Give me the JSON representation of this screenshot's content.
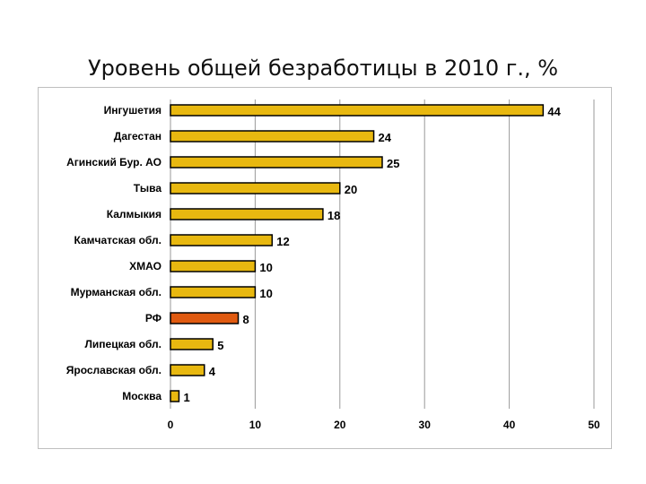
{
  "slide": {
    "title": "Уровень общей безработицы в 2010 г., %"
  },
  "colors": {
    "bar": "#e8b810",
    "highlight": "#e05a10",
    "grid": "#9a9a9a",
    "bar_stroke": "#000000"
  },
  "chart_data": {
    "type": "bar",
    "orientation": "horizontal",
    "title": "Уровень общей безработицы в 2010 г., %",
    "xlabel": "",
    "ylabel": "",
    "categories": [
      "Ингушетия",
      "Дагестан",
      "Агинский Бур. АО",
      "Тыва",
      "Калмыкия",
      "Камчатская обл.",
      "ХМАО",
      "Мурманская обл.",
      "РФ",
      "Липецкая обл.",
      "Ярославская обл.",
      "Москва"
    ],
    "values": [
      44,
      24,
      25,
      20,
      18,
      12,
      10,
      10,
      8,
      5,
      4,
      1
    ],
    "data_labels": [
      "44",
      "24",
      "25",
      "20",
      "18",
      "12",
      "10",
      "10",
      "8",
      "5",
      "4",
      "1"
    ],
    "highlight_category": "РФ",
    "xlim": [
      0,
      50
    ],
    "x_ticks": [
      0,
      10,
      20,
      30,
      40,
      50
    ],
    "x_tick_labels": [
      "0",
      "10",
      "20",
      "30",
      "40",
      "50"
    ],
    "grid": "vertical"
  }
}
